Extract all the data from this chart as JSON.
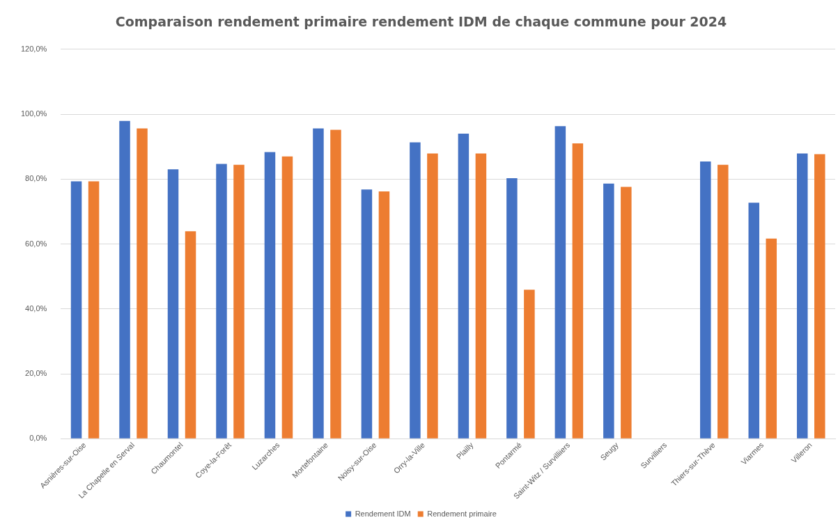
{
  "chart_data": {
    "type": "bar",
    "title": "Comparaison rendement primaire rendement IDM de chaque commune pour 2024",
    "categories": [
      "Asnières-sur-Oise",
      "La Chapelle en Serval",
      "Chaumontel",
      "Coye-la-Forêt",
      "Luzarches",
      "Mortefontaine",
      "Noisy-sur-Oise",
      "Orry-la-Ville",
      "Plailly",
      "Pontarmé",
      "Saint-Witz / Survilliiers",
      "Seugy",
      "Survilliers",
      "Thiers-sur-Thève",
      "Viarmes",
      "Villeron"
    ],
    "series": [
      {
        "name": "Rendement IDM",
        "color": "#4472c4",
        "values": [
          79.3,
          97.9,
          83.0,
          84.7,
          88.3,
          95.6,
          76.8,
          91.3,
          94.0,
          80.3,
          96.3,
          78.6,
          null,
          85.4,
          72.7,
          87.9
        ]
      },
      {
        "name": "Rendement primaire",
        "color": "#ed7d31",
        "values": [
          79.3,
          95.6,
          63.9,
          84.4,
          87.0,
          95.2,
          76.2,
          87.9,
          87.9,
          45.9,
          91.0,
          77.6,
          null,
          84.4,
          61.7,
          87.7
        ]
      }
    ],
    "ylim": [
      0,
      120
    ],
    "yticks": [
      {
        "value": 0,
        "label": "0,0%"
      },
      {
        "value": 20,
        "label": "20,0%"
      },
      {
        "value": 40,
        "label": "40,0%"
      },
      {
        "value": 60,
        "label": "60,0%"
      },
      {
        "value": 80,
        "label": "80,0%"
      },
      {
        "value": 100,
        "label": "100,0%"
      },
      {
        "value": 120,
        "label": "120,0%"
      }
    ],
    "grid": "y",
    "legend": "bottom"
  }
}
